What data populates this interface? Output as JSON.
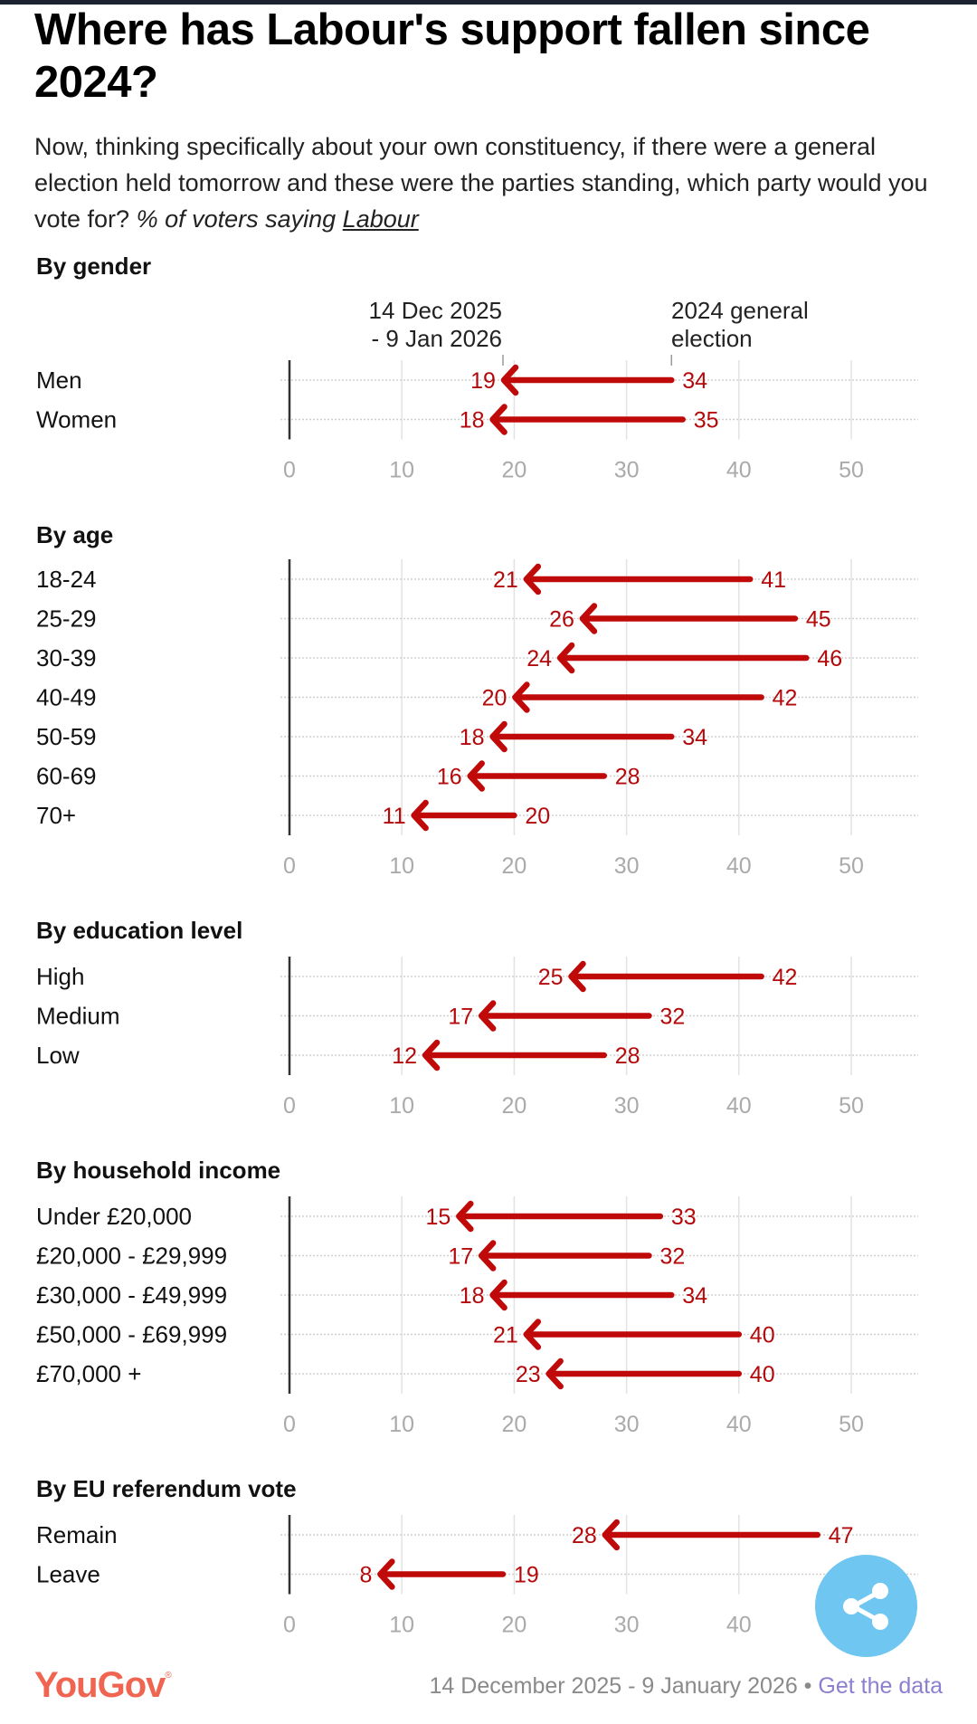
{
  "header": {
    "title": "Where has Labour's support fallen since 2024?",
    "subtitle_plain": "Now, thinking specifically about your own constituency, if there were a general election held tomorrow and these were the parties standing, which party would you vote for? ",
    "subtitle_italic": "% of voters saying ",
    "subtitle_underlined": "Labour"
  },
  "legend": {
    "current_label_line1": "14 Dec 2025",
    "current_label_line2": "- 9 Jan 2026",
    "past_label_line1": "2024 general",
    "past_label_line2": "election"
  },
  "colors": {
    "arrow": "#c00a0a",
    "value_text": "#b4090b",
    "brand": "#ef6551",
    "link": "#8b80cf",
    "share_button": "#6ec6f1"
  },
  "chart_data": {
    "type": "arrow-dumbbell",
    "title": "Where has Labour's support fallen since 2024?",
    "xlabel": "% of voters saying Labour",
    "xlim": [
      0,
      50
    ],
    "x_ticks": [
      "0",
      "10",
      "20",
      "30",
      "40",
      "50"
    ],
    "grid": true,
    "series_names": [
      "2024 general election",
      "14 Dec 2025 - 9 Jan 2026"
    ],
    "groups": [
      {
        "title": "By gender",
        "rows": [
          {
            "label": "Men",
            "from": 34,
            "to": 19
          },
          {
            "label": "Women",
            "from": 35,
            "to": 18
          }
        ]
      },
      {
        "title": "By age",
        "rows": [
          {
            "label": "18-24",
            "from": 41,
            "to": 21
          },
          {
            "label": "25-29",
            "from": 45,
            "to": 26
          },
          {
            "label": "30-39",
            "from": 46,
            "to": 24
          },
          {
            "label": "40-49",
            "from": 42,
            "to": 20
          },
          {
            "label": "50-59",
            "from": 34,
            "to": 18
          },
          {
            "label": "60-69",
            "from": 28,
            "to": 16
          },
          {
            "label": "70+",
            "from": 20,
            "to": 11
          }
        ]
      },
      {
        "title": "By education level",
        "rows": [
          {
            "label": "High",
            "from": 42,
            "to": 25
          },
          {
            "label": "Medium",
            "from": 32,
            "to": 17
          },
          {
            "label": "Low",
            "from": 28,
            "to": 12
          }
        ]
      },
      {
        "title": "By household income",
        "rows": [
          {
            "label": "Under £20,000",
            "from": 33,
            "to": 15
          },
          {
            "label": "£20,000 - £29,999",
            "from": 32,
            "to": 17
          },
          {
            "label": "£30,000 - £49,999",
            "from": 34,
            "to": 18
          },
          {
            "label": "£50,000 - £69,999",
            "from": 40,
            "to": 21
          },
          {
            "label": "£70,000 +",
            "from": 40,
            "to": 23
          }
        ]
      },
      {
        "title": "By EU referendum vote",
        "x_ticks": [
          "0",
          "10",
          "20",
          "30",
          "40"
        ],
        "rows": [
          {
            "label": "Remain",
            "from": 47,
            "to": 28
          },
          {
            "label": "Leave",
            "from": 19,
            "to": 8
          }
        ]
      }
    ]
  },
  "footer": {
    "logo": "YouGov",
    "logo_mark": "®",
    "date_range": "14 December 2025 - 9 January 2026",
    "separator": " • ",
    "link_label": "Get the data"
  },
  "share": {
    "icon": "share-icon"
  }
}
